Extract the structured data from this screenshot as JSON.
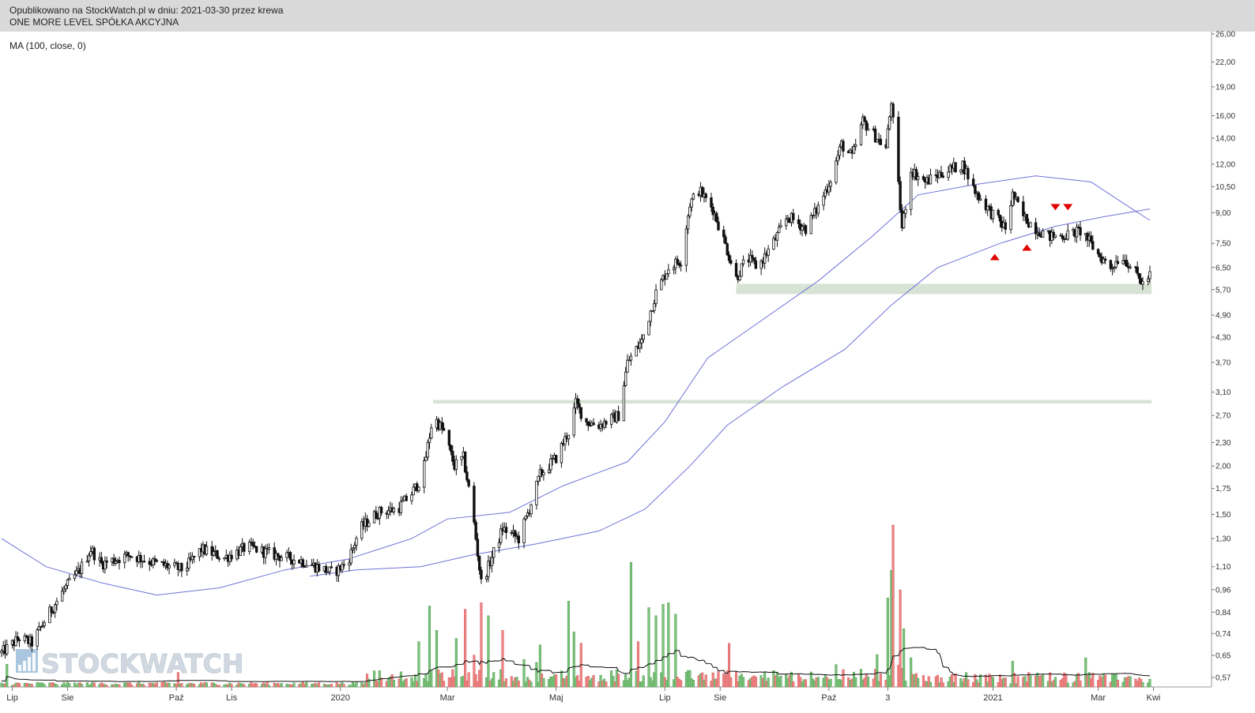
{
  "header": {
    "published_line": "Opublikowano na StockWatch.pl w dniu: 2021-03-30 przez krewa",
    "company": "ONE MORE LEVEL SPÓŁKA AKCYJNA"
  },
  "indicator_label": "MA (100, close, 0)",
  "watermark": "STOCKWATCH",
  "colors": {
    "candles": "#111111",
    "ma": "#6f72d8",
    "support_zone": "#d7e3d4",
    "volume_up": "#7cc47c",
    "volume_down": "#f08585",
    "volume_avg": "#111111",
    "markers": "#e00000",
    "header_bg": "#d9d9d9"
  },
  "chart_data": {
    "type": "candlestick",
    "price_scale": "log",
    "y_ticks": [
      "26,00",
      "22,00",
      "19,00",
      "16,00",
      "14,00",
      "12,00",
      "10,50",
      "9,00",
      "7,50",
      "6,50",
      "5,70",
      "4,90",
      "4,30",
      "3,70",
      "3,10",
      "2,70",
      "2,30",
      "2,00",
      "1,75",
      "1,50",
      "1,30",
      "1,10",
      "0,96",
      "0,84",
      "0,74",
      "0,65",
      "0,57"
    ],
    "x_ticks": [
      {
        "label": "Lip",
        "date": "2019-07-01"
      },
      {
        "label": "Sie",
        "date": "2019-08-01"
      },
      {
        "label": "Paź",
        "date": "2019-10-01"
      },
      {
        "label": "Lis",
        "date": "2019-11-01"
      },
      {
        "label": "2020",
        "date": "2020-01-01"
      },
      {
        "label": "Mar",
        "date": "2020-03-01"
      },
      {
        "label": "Maj",
        "date": "2020-05-01"
      },
      {
        "label": "Lip",
        "date": "2020-07-01"
      },
      {
        "label": "Sie",
        "date": "2020-08-01"
      },
      {
        "label": "Paź",
        "date": "2020-10-01"
      },
      {
        "label": "3",
        "date": "2020-11-03"
      },
      {
        "label": "2021",
        "date": "2021-01-01"
      },
      {
        "label": "Mar",
        "date": "2021-03-01"
      },
      {
        "label": "Kwi",
        "date": "2021-04-01"
      }
    ],
    "date_range": [
      "2019-06-25",
      "2021-03-30"
    ],
    "price_path": [
      {
        "date": "2019-06-25",
        "close": 0.66
      },
      {
        "date": "2019-07-05",
        "close": 0.72
      },
      {
        "date": "2019-07-12",
        "close": 0.7
      },
      {
        "date": "2019-07-22",
        "close": 0.84
      },
      {
        "date": "2019-07-30",
        "close": 0.96
      },
      {
        "date": "2019-08-08",
        "close": 1.08
      },
      {
        "date": "2019-08-14",
        "close": 1.22
      },
      {
        "date": "2019-08-20",
        "close": 1.12
      },
      {
        "date": "2019-09-05",
        "close": 1.18
      },
      {
        "date": "2019-09-20",
        "close": 1.12
      },
      {
        "date": "2019-10-05",
        "close": 1.08
      },
      {
        "date": "2019-10-15",
        "close": 1.22
      },
      {
        "date": "2019-10-28",
        "close": 1.16
      },
      {
        "date": "2019-11-10",
        "close": 1.24
      },
      {
        "date": "2019-11-25",
        "close": 1.18
      },
      {
        "date": "2019-12-10",
        "close": 1.14
      },
      {
        "date": "2019-12-28",
        "close": 1.06
      },
      {
        "date": "2020-01-05",
        "close": 1.13
      },
      {
        "date": "2020-01-12",
        "close": 1.38
      },
      {
        "date": "2020-01-22",
        "close": 1.52
      },
      {
        "date": "2020-02-02",
        "close": 1.55
      },
      {
        "date": "2020-02-10",
        "close": 1.7
      },
      {
        "date": "2020-02-16",
        "close": 1.88
      },
      {
        "date": "2020-02-22",
        "close": 2.7
      },
      {
        "date": "2020-02-28",
        "close": 2.45
      },
      {
        "date": "2020-03-05",
        "close": 2.0
      },
      {
        "date": "2020-03-10",
        "close": 2.1
      },
      {
        "date": "2020-03-15",
        "close": 1.55
      },
      {
        "date": "2020-03-20",
        "close": 1.0
      },
      {
        "date": "2020-03-24",
        "close": 1.1
      },
      {
        "date": "2020-04-01",
        "close": 1.38
      },
      {
        "date": "2020-04-10",
        "close": 1.3
      },
      {
        "date": "2020-04-16",
        "close": 1.55
      },
      {
        "date": "2020-04-22",
        "close": 1.9
      },
      {
        "date": "2020-05-01",
        "close": 2.1
      },
      {
        "date": "2020-05-08",
        "close": 2.45
      },
      {
        "date": "2020-05-12",
        "close": 2.9
      },
      {
        "date": "2020-05-18",
        "close": 2.6
      },
      {
        "date": "2020-05-25",
        "close": 2.55
      },
      {
        "date": "2020-06-05",
        "close": 2.7
      },
      {
        "date": "2020-06-10",
        "close": 3.7
      },
      {
        "date": "2020-06-18",
        "close": 4.2
      },
      {
        "date": "2020-06-26",
        "close": 5.6
      },
      {
        "date": "2020-07-03",
        "close": 6.5
      },
      {
        "date": "2020-07-10",
        "close": 6.8
      },
      {
        "date": "2020-07-15",
        "close": 9.5
      },
      {
        "date": "2020-07-20",
        "close": 10.3
      },
      {
        "date": "2020-07-28",
        "close": 9.2
      },
      {
        "date": "2020-08-05",
        "close": 7.2
      },
      {
        "date": "2020-08-10",
        "close": 6.1
      },
      {
        "date": "2020-08-16",
        "close": 6.9
      },
      {
        "date": "2020-08-22",
        "close": 6.5
      },
      {
        "date": "2020-09-01",
        "close": 7.7
      },
      {
        "date": "2020-09-08",
        "close": 8.8
      },
      {
        "date": "2020-09-18",
        "close": 8.2
      },
      {
        "date": "2020-09-25",
        "close": 9.3
      },
      {
        "date": "2020-10-02",
        "close": 11.0
      },
      {
        "date": "2020-10-08",
        "close": 13.5
      },
      {
        "date": "2020-10-14",
        "close": 12.5
      },
      {
        "date": "2020-10-20",
        "close": 15.5
      },
      {
        "date": "2020-10-28",
        "close": 14.0
      },
      {
        "date": "2020-11-02",
        "close": 13.2
      },
      {
        "date": "2020-11-05",
        "close": 17.5
      },
      {
        "date": "2020-11-09",
        "close": 10.5
      },
      {
        "date": "2020-11-11",
        "close": 8.2
      },
      {
        "date": "2020-11-16",
        "close": 11.6
      },
      {
        "date": "2020-11-24",
        "close": 10.8
      },
      {
        "date": "2020-12-05",
        "close": 11.5
      },
      {
        "date": "2020-12-15",
        "close": 12.0
      },
      {
        "date": "2020-12-22",
        "close": 10.2
      },
      {
        "date": "2020-12-31",
        "close": 9.0
      },
      {
        "date": "2021-01-08",
        "close": 8.2
      },
      {
        "date": "2021-01-12",
        "close": 10.0
      },
      {
        "date": "2021-01-18",
        "close": 8.8
      },
      {
        "date": "2021-01-25",
        "close": 8.2
      },
      {
        "date": "2021-02-02",
        "close": 7.8
      },
      {
        "date": "2021-02-12",
        "close": 7.9
      },
      {
        "date": "2021-02-20",
        "close": 8.1
      },
      {
        "date": "2021-02-28",
        "close": 7.1
      },
      {
        "date": "2021-03-08",
        "close": 6.5
      },
      {
        "date": "2021-03-14",
        "close": 7.0
      },
      {
        "date": "2021-03-20",
        "close": 6.5
      },
      {
        "date": "2021-03-26",
        "close": 5.9
      },
      {
        "date": "2021-03-30",
        "close": 6.2
      }
    ],
    "ma_lines": [
      {
        "name": "MA (100, close, 0)",
        "points": [
          {
            "date": "2019-06-25",
            "value": 1.3
          },
          {
            "date": "2019-07-20",
            "value": 1.1
          },
          {
            "date": "2019-08-20",
            "value": 1.0
          },
          {
            "date": "2019-09-20",
            "value": 0.93
          },
          {
            "date": "2019-10-25",
            "value": 0.97
          },
          {
            "date": "2019-12-01",
            "value": 1.08
          },
          {
            "date": "2020-01-05",
            "value": 1.15
          },
          {
            "date": "2020-02-10",
            "value": 1.3
          },
          {
            "date": "2020-03-01",
            "value": 1.46
          },
          {
            "date": "2020-04-05",
            "value": 1.52
          },
          {
            "date": "2020-05-05",
            "value": 1.78
          },
          {
            "date": "2020-06-10",
            "value": 2.05
          },
          {
            "date": "2020-07-01",
            "value": 2.6
          },
          {
            "date": "2020-07-25",
            "value": 3.8
          },
          {
            "date": "2020-08-20",
            "value": 4.6
          },
          {
            "date": "2020-09-25",
            "value": 6.0
          },
          {
            "date": "2020-10-25",
            "value": 7.8
          },
          {
            "date": "2020-11-20",
            "value": 10.0
          },
          {
            "date": "2020-12-20",
            "value": 10.6
          },
          {
            "date": "2021-01-25",
            "value": 11.2
          },
          {
            "date": "2021-02-25",
            "value": 10.8
          },
          {
            "date": "2021-03-20",
            "value": 9.2
          },
          {
            "date": "2021-03-30",
            "value": 8.6
          }
        ]
      },
      {
        "name": "",
        "points": [
          {
            "date": "2019-12-15",
            "value": 1.04
          },
          {
            "date": "2020-01-10",
            "value": 1.08
          },
          {
            "date": "2020-02-15",
            "value": 1.1
          },
          {
            "date": "2020-03-15",
            "value": 1.18
          },
          {
            "date": "2020-04-20",
            "value": 1.26
          },
          {
            "date": "2020-05-25",
            "value": 1.36
          },
          {
            "date": "2020-06-20",
            "value": 1.55
          },
          {
            "date": "2020-07-15",
            "value": 2.0
          },
          {
            "date": "2020-08-05",
            "value": 2.55
          },
          {
            "date": "2020-09-05",
            "value": 3.2
          },
          {
            "date": "2020-10-10",
            "value": 4.0
          },
          {
            "date": "2020-11-05",
            "value": 5.2
          },
          {
            "date": "2020-12-01",
            "value": 6.5
          },
          {
            "date": "2021-01-05",
            "value": 7.5
          },
          {
            "date": "2021-02-05",
            "value": 8.3
          },
          {
            "date": "2021-03-05",
            "value": 8.8
          },
          {
            "date": "2021-03-30",
            "value": 9.2
          }
        ]
      }
    ],
    "support_zones": [
      {
        "from_date": "2020-08-10",
        "to_date": "2021-03-31",
        "low": 5.55,
        "high": 5.9
      },
      {
        "from_date": "2020-02-22",
        "to_date": "2021-03-31",
        "low": 2.9,
        "high": 2.96
      }
    ],
    "signals": [
      {
        "type": "up",
        "date": "2021-01-02",
        "price": 6.95
      },
      {
        "type": "up",
        "date": "2021-01-20",
        "price": 7.35
      },
      {
        "type": "down",
        "date": "2021-02-05",
        "price": 9.3
      },
      {
        "type": "down",
        "date": "2021-02-12",
        "price": 9.3
      }
    ],
    "volume_spikes": [
      {
        "date": "2019-06-28",
        "level": 0.14
      },
      {
        "date": "2019-08-18",
        "level": 0.08
      },
      {
        "date": "2019-09-08",
        "level": 0.1
      },
      {
        "date": "2019-10-02",
        "level": 0.09
      },
      {
        "date": "2020-01-20",
        "level": 0.1
      },
      {
        "date": "2020-02-08",
        "level": 0.35
      },
      {
        "date": "2020-02-14",
        "level": 0.28
      },
      {
        "date": "2020-02-20",
        "level": 0.5
      },
      {
        "date": "2020-02-24",
        "level": 0.35
      },
      {
        "date": "2020-03-01",
        "level": 0.4
      },
      {
        "date": "2020-03-06",
        "level": 0.3
      },
      {
        "date": "2020-03-11",
        "level": 0.48
      },
      {
        "date": "2020-03-15",
        "level": 0.3
      },
      {
        "date": "2020-03-20",
        "level": 0.52
      },
      {
        "date": "2020-03-24",
        "level": 0.44
      },
      {
        "date": "2020-04-01",
        "level": 0.35
      },
      {
        "date": "2020-04-22",
        "level": 0.26
      },
      {
        "date": "2020-05-02",
        "level": 0.27
      },
      {
        "date": "2020-05-08",
        "level": 0.53
      },
      {
        "date": "2020-05-11",
        "level": 0.34
      },
      {
        "date": "2020-05-15",
        "level": 0.27
      },
      {
        "date": "2020-06-06",
        "level": 0.31
      },
      {
        "date": "2020-06-12",
        "level": 0.77
      },
      {
        "date": "2020-06-16",
        "level": 0.28
      },
      {
        "date": "2020-06-22",
        "level": 0.49
      },
      {
        "date": "2020-06-26",
        "level": 0.44
      },
      {
        "date": "2020-06-30",
        "level": 0.51
      },
      {
        "date": "2020-07-03",
        "level": 0.52
      },
      {
        "date": "2020-07-07",
        "level": 0.45
      },
      {
        "date": "2020-07-12",
        "level": 0.3
      },
      {
        "date": "2020-07-18",
        "level": 0.24
      },
      {
        "date": "2020-08-01",
        "level": 0.24
      },
      {
        "date": "2020-08-06",
        "level": 0.27
      },
      {
        "date": "2020-10-18",
        "level": 0.26
      },
      {
        "date": "2020-10-28",
        "level": 0.2
      },
      {
        "date": "2020-11-01",
        "level": 0.38
      },
      {
        "date": "2020-11-03",
        "level": 0.55
      },
      {
        "date": "2020-11-05",
        "level": 0.72
      },
      {
        "date": "2020-11-06",
        "level": 1.0
      },
      {
        "date": "2020-11-08",
        "level": 0.98
      },
      {
        "date": "2020-11-10",
        "level": 0.6
      },
      {
        "date": "2020-11-12",
        "level": 0.36
      },
      {
        "date": "2021-01-03",
        "level": 0.28
      },
      {
        "date": "2021-01-12",
        "level": 0.16
      },
      {
        "date": "2021-02-22",
        "level": 0.18
      }
    ]
  }
}
